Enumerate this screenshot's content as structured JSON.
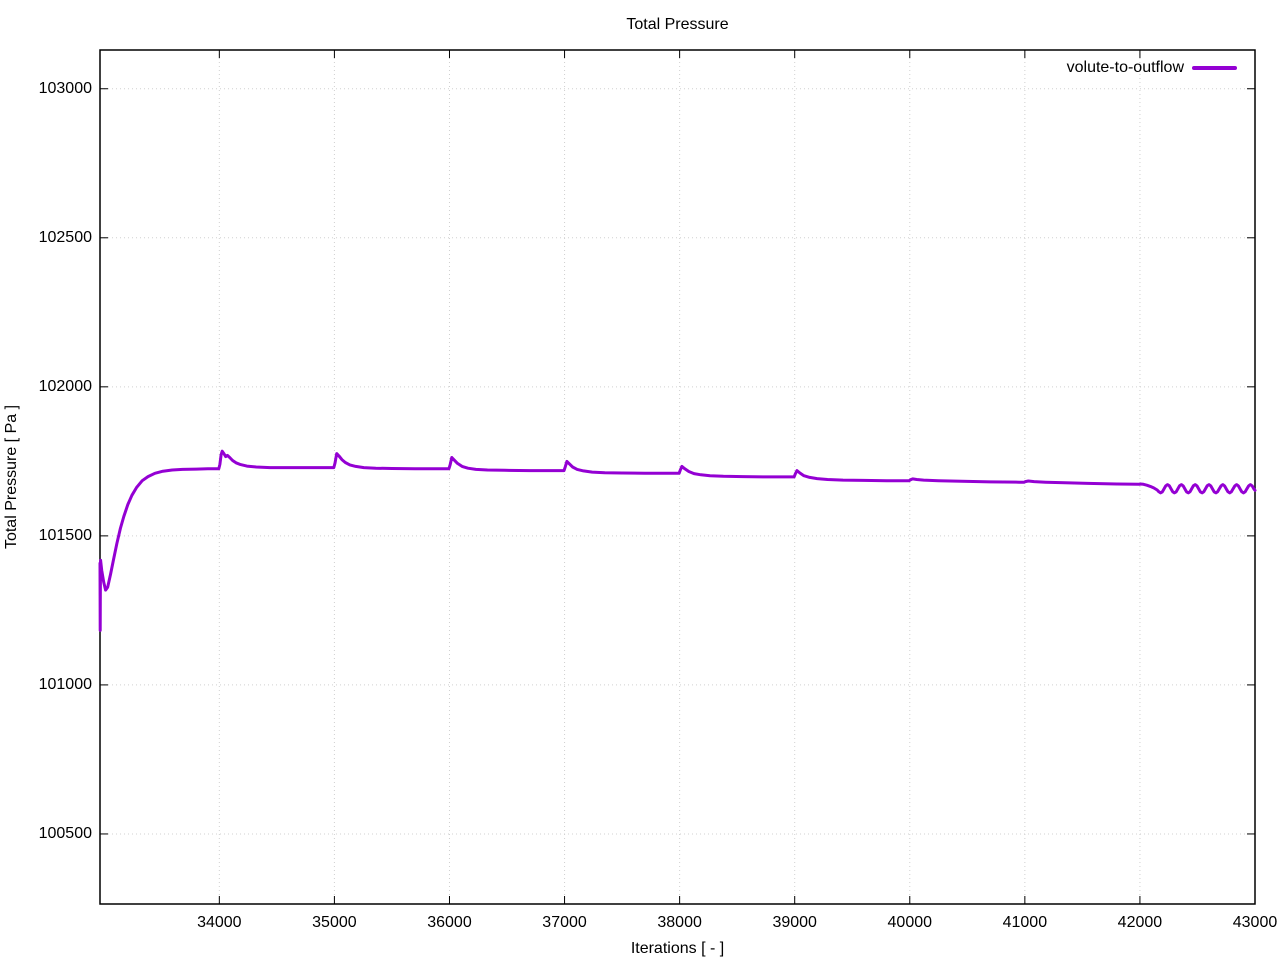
{
  "page": {
    "background": "#ffffff"
  },
  "chart_data": {
    "type": "line",
    "title": "Total Pressure",
    "xlabel": "Iterations [ - ]",
    "ylabel": "Total Pressure [ Pa ]",
    "xlim": [
      32963,
      43000
    ],
    "ylim": [
      100265,
      103130
    ],
    "xticks": [
      34000,
      35000,
      36000,
      37000,
      38000,
      39000,
      40000,
      41000,
      42000,
      43000
    ],
    "yticks": [
      100500,
      101000,
      101500,
      102000,
      102500,
      103000
    ],
    "grid": true,
    "grid_color": "#d0d0d0",
    "axis_color": "#000000",
    "legend_position": "top-right",
    "series": [
      {
        "name": "volute-to-outflow",
        "color": "#9400d3",
        "points": [
          [
            32963,
            101408
          ],
          [
            32964,
            101300
          ],
          [
            32965,
            101183
          ],
          [
            32966,
            101280
          ],
          [
            32967,
            101395
          ],
          [
            32968,
            101418
          ],
          [
            32978,
            101385
          ],
          [
            32995,
            101345
          ],
          [
            33012,
            101318
          ],
          [
            33030,
            101328
          ],
          [
            33055,
            101372
          ],
          [
            33080,
            101420
          ],
          [
            33110,
            101475
          ],
          [
            33140,
            101525
          ],
          [
            33170,
            101565
          ],
          [
            33205,
            101605
          ],
          [
            33240,
            101636
          ],
          [
            33280,
            101662
          ],
          [
            33330,
            101685
          ],
          [
            33380,
            101699
          ],
          [
            33440,
            101710
          ],
          [
            33510,
            101717
          ],
          [
            33590,
            101721
          ],
          [
            33680,
            101723
          ],
          [
            33800,
            101724
          ],
          [
            33900,
            101725
          ],
          [
            33995,
            101725
          ],
          [
            34005,
            101740
          ],
          [
            34015,
            101772
          ],
          [
            34025,
            101784
          ],
          [
            34040,
            101776
          ],
          [
            34055,
            101766
          ],
          [
            34070,
            101770
          ],
          [
            34090,
            101763
          ],
          [
            34115,
            101753
          ],
          [
            34145,
            101745
          ],
          [
            34185,
            101739
          ],
          [
            34240,
            101734
          ],
          [
            34320,
            101731
          ],
          [
            34440,
            101729
          ],
          [
            34600,
            101729
          ],
          [
            34800,
            101729
          ],
          [
            34995,
            101729
          ],
          [
            35005,
            101744
          ],
          [
            35020,
            101776
          ],
          [
            35040,
            101768
          ],
          [
            35065,
            101756
          ],
          [
            35095,
            101746
          ],
          [
            35135,
            101738
          ],
          [
            35185,
            101733
          ],
          [
            35255,
            101729
          ],
          [
            35360,
            101727
          ],
          [
            35500,
            101726
          ],
          [
            35700,
            101725
          ],
          [
            35900,
            101725
          ],
          [
            35995,
            101725
          ],
          [
            36005,
            101738
          ],
          [
            36020,
            101763
          ],
          [
            36040,
            101755
          ],
          [
            36070,
            101743
          ],
          [
            36110,
            101733
          ],
          [
            36160,
            101727
          ],
          [
            36230,
            101723
          ],
          [
            36330,
            101721
          ],
          [
            36480,
            101720
          ],
          [
            36700,
            101719
          ],
          [
            36900,
            101719
          ],
          [
            36995,
            101719
          ],
          [
            37005,
            101730
          ],
          [
            37020,
            101750
          ],
          [
            37040,
            101742
          ],
          [
            37070,
            101731
          ],
          [
            37110,
            101723
          ],
          [
            37165,
            101718
          ],
          [
            37240,
            101714
          ],
          [
            37350,
            101712
          ],
          [
            37500,
            101711
          ],
          [
            37700,
            101710
          ],
          [
            37900,
            101710
          ],
          [
            37995,
            101710
          ],
          [
            38005,
            101720
          ],
          [
            38020,
            101733
          ],
          [
            38045,
            101725
          ],
          [
            38080,
            101716
          ],
          [
            38125,
            101709
          ],
          [
            38185,
            101705
          ],
          [
            38265,
            101702
          ],
          [
            38380,
            101700
          ],
          [
            38550,
            101699
          ],
          [
            38750,
            101698
          ],
          [
            38950,
            101698
          ],
          [
            38995,
            101698
          ],
          [
            39005,
            101708
          ],
          [
            39020,
            101719
          ],
          [
            39045,
            101711
          ],
          [
            39080,
            101702
          ],
          [
            39130,
            101696
          ],
          [
            39195,
            101692
          ],
          [
            39285,
            101689
          ],
          [
            39420,
            101687
          ],
          [
            39600,
            101686
          ],
          [
            39800,
            101685
          ],
          [
            39995,
            101685
          ],
          [
            40005,
            101688
          ],
          [
            40025,
            101691
          ],
          [
            40060,
            101689
          ],
          [
            40120,
            101687
          ],
          [
            40250,
            101685
          ],
          [
            40450,
            101683
          ],
          [
            40700,
            101681
          ],
          [
            40950,
            101680
          ],
          [
            40995,
            101680
          ],
          [
            41005,
            101682
          ],
          [
            41030,
            101684
          ],
          [
            41080,
            101682
          ],
          [
            41180,
            101680
          ],
          [
            41350,
            101678
          ],
          [
            41550,
            101676
          ],
          [
            41800,
            101674
          ],
          [
            41995,
            101673
          ],
          [
            42005,
            101674
          ],
          [
            42030,
            101673
          ],
          [
            42060,
            101670
          ],
          [
            42090,
            101666
          ],
          [
            42120,
            101661
          ],
          [
            42150,
            101654
          ],
          [
            42165,
            101648
          ],
          [
            42180,
            101644
          ],
          [
            42195,
            101648
          ],
          [
            42210,
            101658
          ],
          [
            42225,
            101668
          ],
          [
            42240,
            101672
          ],
          [
            42255,
            101668
          ],
          [
            42270,
            101658
          ],
          [
            42285,
            101648
          ],
          [
            42300,
            101644
          ],
          [
            42315,
            101648
          ],
          [
            42330,
            101658
          ],
          [
            42345,
            101668
          ],
          [
            42360,
            101672
          ],
          [
            42375,
            101668
          ],
          [
            42390,
            101658
          ],
          [
            42405,
            101648
          ],
          [
            42420,
            101644
          ],
          [
            42435,
            101648
          ],
          [
            42450,
            101658
          ],
          [
            42465,
            101668
          ],
          [
            42480,
            101672
          ],
          [
            42495,
            101668
          ],
          [
            42510,
            101658
          ],
          [
            42525,
            101648
          ],
          [
            42540,
            101644
          ],
          [
            42555,
            101648
          ],
          [
            42570,
            101658
          ],
          [
            42585,
            101668
          ],
          [
            42600,
            101672
          ],
          [
            42615,
            101668
          ],
          [
            42630,
            101658
          ],
          [
            42645,
            101648
          ],
          [
            42660,
            101644
          ],
          [
            42675,
            101648
          ],
          [
            42690,
            101658
          ],
          [
            42705,
            101668
          ],
          [
            42720,
            101672
          ],
          [
            42735,
            101668
          ],
          [
            42750,
            101658
          ],
          [
            42765,
            101648
          ],
          [
            42780,
            101644
          ],
          [
            42795,
            101648
          ],
          [
            42810,
            101658
          ],
          [
            42825,
            101668
          ],
          [
            42840,
            101672
          ],
          [
            42855,
            101668
          ],
          [
            42870,
            101658
          ],
          [
            42885,
            101648
          ],
          [
            42900,
            101644
          ],
          [
            42915,
            101648
          ],
          [
            42930,
            101658
          ],
          [
            42945,
            101668
          ],
          [
            42960,
            101672
          ],
          [
            42975,
            101668
          ],
          [
            42990,
            101658
          ],
          [
            43000,
            101653
          ]
        ]
      }
    ]
  }
}
